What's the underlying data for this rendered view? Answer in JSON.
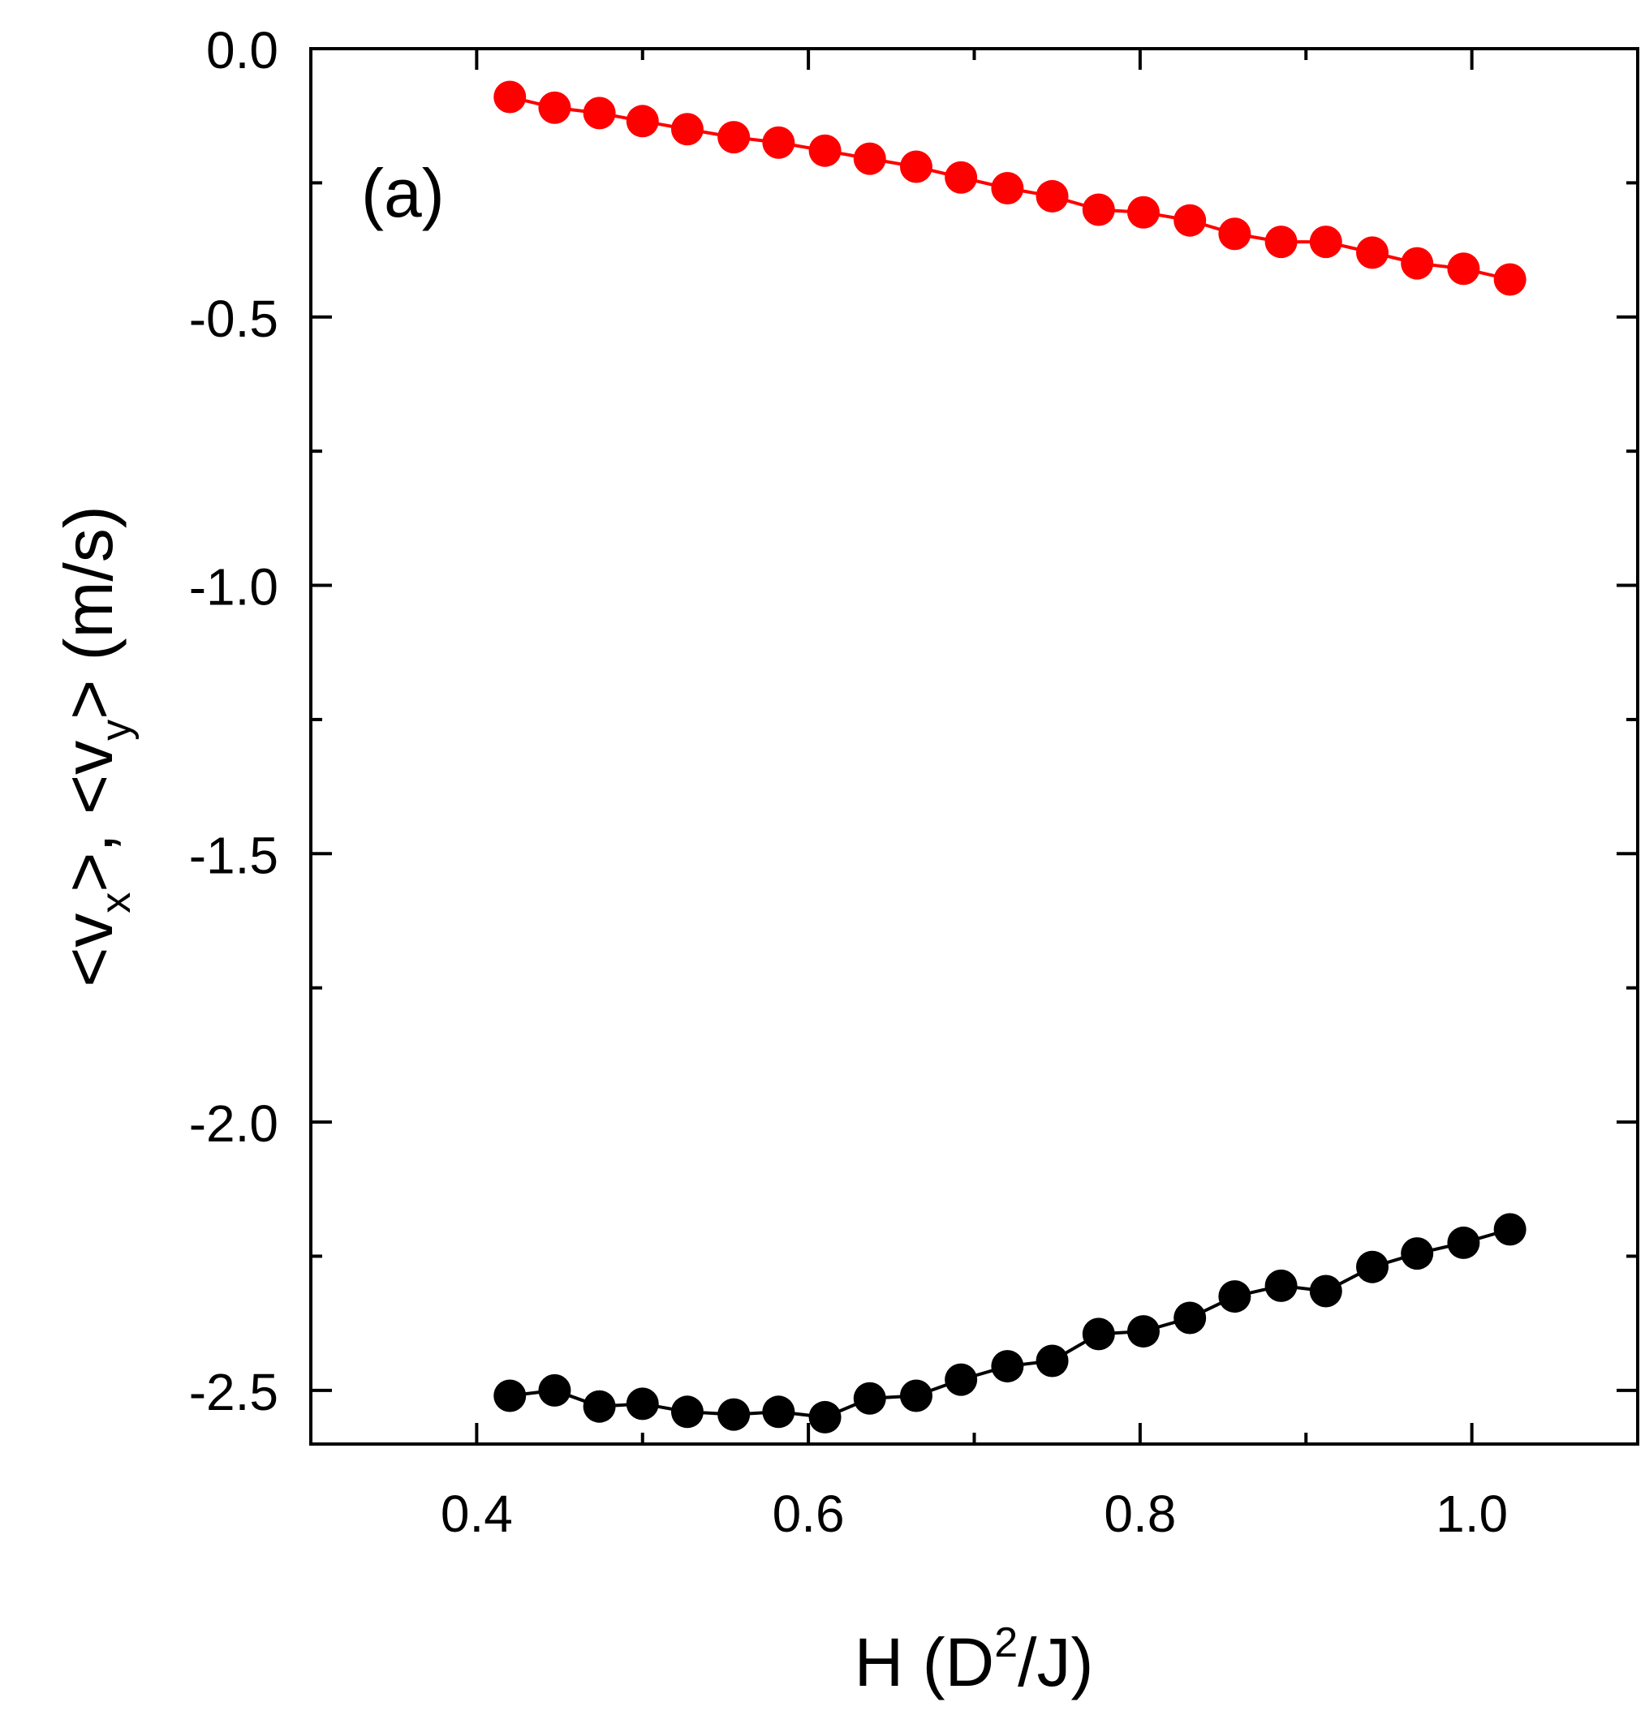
{
  "chart_data": {
    "type": "line",
    "panel_label": "(a)",
    "xlabel": {
      "main": "H (D",
      "sup": "2",
      "end": "/J)"
    },
    "ylabel": {
      "p1": "<v",
      "sub_x": "x",
      "p2": ">, <v",
      "sub_y": "y",
      "p3": "> (m/s)"
    },
    "xlim": [
      0.3,
      1.1
    ],
    "ylim": [
      -2.6,
      0.0
    ],
    "xticks": [
      {
        "value": 0.4,
        "label": "0.4"
      },
      {
        "value": 0.6,
        "label": "0.6"
      },
      {
        "value": 0.8,
        "label": "0.8"
      },
      {
        "value": 1.0,
        "label": "1.0"
      }
    ],
    "xticks_minor": [
      0.5,
      0.7,
      0.9
    ],
    "yticks": [
      {
        "value": 0.0,
        "label": "0.0"
      },
      {
        "value": -0.5,
        "label": "-0.5"
      },
      {
        "value": -1.0,
        "label": "-1.0"
      },
      {
        "value": -1.5,
        "label": "-1.5"
      },
      {
        "value": -2.0,
        "label": "-2.0"
      },
      {
        "value": -2.5,
        "label": "-2.5"
      }
    ],
    "yticks_minor": [
      -0.25,
      -0.75,
      -1.25,
      -1.75,
      -2.25
    ],
    "x": [
      0.42,
      0.447,
      0.474,
      0.5,
      0.527,
      0.555,
      0.582,
      0.61,
      0.637,
      0.665,
      0.692,
      0.72,
      0.747,
      0.775,
      0.802,
      0.83,
      0.857,
      0.885,
      0.912,
      0.94,
      0.967,
      0.995,
      1.023
    ],
    "series": [
      {
        "name": "<v_y>",
        "color": "#ff0000",
        "values": [
          -0.09,
          -0.11,
          -0.12,
          -0.135,
          -0.15,
          -0.165,
          -0.175,
          -0.19,
          -0.205,
          -0.22,
          -0.24,
          -0.26,
          -0.275,
          -0.3,
          -0.305,
          -0.32,
          -0.345,
          -0.36,
          -0.36,
          -0.38,
          -0.4,
          -0.41,
          -0.43
        ]
      },
      {
        "name": "<v_x>",
        "color": "#000000",
        "values": [
          -2.51,
          -2.5,
          -2.53,
          -2.525,
          -2.54,
          -2.545,
          -2.54,
          -2.55,
          -2.515,
          -2.51,
          -2.48,
          -2.455,
          -2.445,
          -2.395,
          -2.39,
          -2.365,
          -2.325,
          -2.305,
          -2.315,
          -2.27,
          -2.245,
          -2.225,
          -2.2
        ]
      }
    ]
  }
}
